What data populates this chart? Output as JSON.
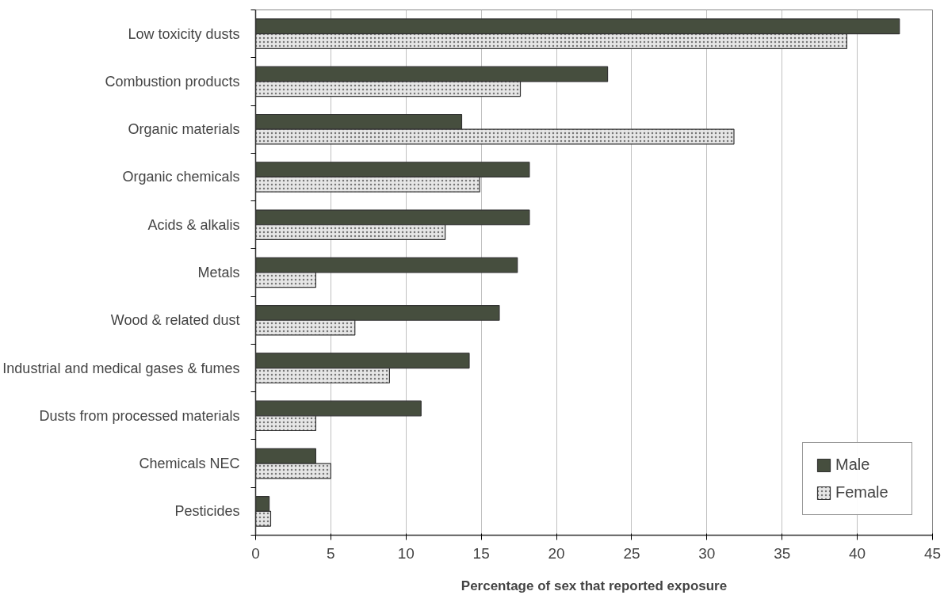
{
  "chart_data": {
    "type": "bar",
    "orientation": "horizontal",
    "xlabel": "Percentage of sex that reported exposure",
    "categories": [
      "Low toxicity dusts",
      "Combustion products",
      "Organic materials",
      "Organic chemicals",
      "Acids & alkalis",
      "Metals",
      "Wood & related dust",
      "Industrial and medical gases & fumes",
      "Dusts from processed materials",
      "Chemicals NEC",
      "Pesticides"
    ],
    "series": [
      {
        "name": "Male",
        "color": "#464e3e",
        "values": [
          42.8,
          23.4,
          13.7,
          18.2,
          18.2,
          17.4,
          16.2,
          14.2,
          11.0,
          4.0,
          0.9
        ]
      },
      {
        "name": "Female",
        "color": "#e6e6e6",
        "values": [
          39.3,
          17.6,
          31.8,
          14.9,
          12.6,
          4.0,
          6.6,
          8.9,
          4.0,
          5.0,
          1.0
        ]
      }
    ],
    "xlim": [
      0,
      45
    ],
    "xticks": [
      0,
      5,
      10,
      15,
      20,
      25,
      30,
      35,
      40,
      45
    ],
    "grid": "x",
    "legend": "bottom right"
  }
}
